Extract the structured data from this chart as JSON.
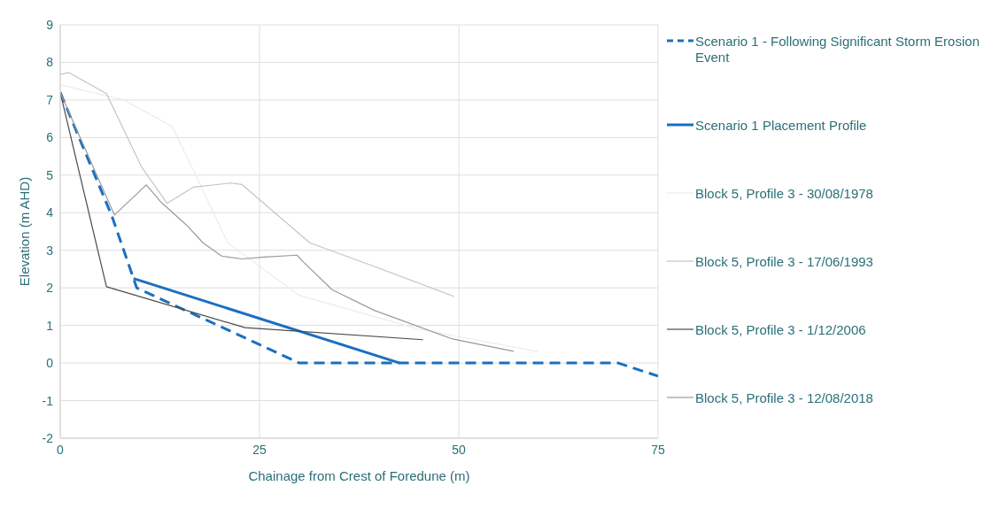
{
  "chart_data": {
    "type": "line",
    "xlabel": "Chainage from Crest of Foredune (m)",
    "ylabel": "Elevation (m AHD)",
    "xlim": [
      0,
      75
    ],
    "xticks": [
      0,
      25,
      50,
      75
    ],
    "ylim": [
      -2,
      9
    ],
    "yticks": [
      -2,
      -1,
      0,
      1,
      2,
      3,
      4,
      5,
      6,
      7,
      8,
      9
    ],
    "grid": true,
    "legend": "right",
    "marker": "none",
    "series": [
      {
        "name": "Scenario 1 - Following Significant Storm Erosion Event",
        "color": "#1a6fc0",
        "line_style": "dashed",
        "x": [
          0,
          6.5,
          9.6,
          30,
          70,
          75
        ],
        "values": [
          7.2,
          3.9,
          2.0,
          0,
          0,
          -0.35
        ]
      },
      {
        "name": "Scenario 1 Placement Profile",
        "color": "#1a6fc0",
        "line_style": "solid",
        "x": [
          9.2,
          42.6
        ],
        "values": [
          2.25,
          0
        ]
      },
      {
        "name": "Block 5, Profile 3 - 30/08/1978",
        "color": "#ececec",
        "line_style": "solid",
        "x": [
          0,
          8,
          14,
          17,
          21,
          30,
          45,
          60
        ],
        "values": [
          7.4,
          7.0,
          6.3,
          5.0,
          3.2,
          1.8,
          0.9,
          0.3
        ]
      },
      {
        "name": "Block 5, Profile 3 - 17/06/1993",
        "color": "#c4c4c4",
        "line_style": "solid",
        "x": [
          0,
          1.1,
          5.8,
          10.2,
          13.4,
          16.7,
          21.4,
          22.8,
          31.3,
          39.4,
          49.4
        ],
        "values": [
          7.68,
          7.73,
          7.17,
          5.22,
          4.25,
          4.68,
          4.79,
          4.75,
          3.2,
          2.57,
          1.77
        ]
      },
      {
        "name": "Block 5, Profile 3 - 1/12/2006",
        "color": "#4a4a4a",
        "line_style": "solid",
        "x": [
          0,
          5.8,
          23.2,
          45.5
        ],
        "values": [
          7.2,
          2.03,
          0.94,
          0.62
        ]
      },
      {
        "name": "Block 5, Profile 3 - 12/08/2018",
        "color": "#9a9a9a",
        "line_style": "solid",
        "x": [
          0,
          6.8,
          10.8,
          12.6,
          15.9,
          17.9,
          20.3,
          22.8,
          25.6,
          29.7,
          30.5,
          34.1,
          39.4,
          49.2,
          56.9
        ],
        "values": [
          7.2,
          3.94,
          4.74,
          4.29,
          3.66,
          3.2,
          2.84,
          2.77,
          2.82,
          2.87,
          2.69,
          1.95,
          1.4,
          0.64,
          0.31
        ]
      }
    ]
  }
}
